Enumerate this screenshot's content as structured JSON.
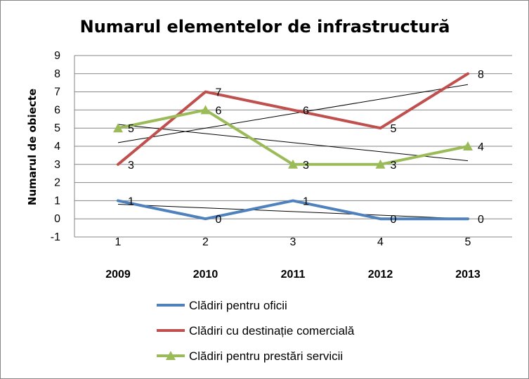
{
  "chart_data": {
    "type": "line",
    "title": "Numarul elementelor de infrastructură",
    "ylabel": "Numarul de obiecte",
    "x": [
      1,
      2,
      3,
      4,
      5
    ],
    "year_labels": [
      "2009",
      "2010",
      "2011",
      "2012",
      "2013"
    ],
    "ylim": [
      -1,
      9
    ],
    "yticks": [
      "-1",
      "0",
      "1",
      "2",
      "3",
      "4",
      "5",
      "6",
      "7",
      "8",
      "9"
    ],
    "grid": "horizontal",
    "legend_position": "bottom",
    "series": [
      {
        "name": "Clădiri pentru oficii",
        "values": [
          1,
          0,
          1,
          0,
          0
        ],
        "color": "#4F81BD",
        "marker": "none",
        "trendline": true
      },
      {
        "name": "Clădiri cu destinație comercială",
        "values": [
          3,
          7,
          6,
          5,
          8
        ],
        "color": "#C0504D",
        "marker": "none",
        "trendline": true
      },
      {
        "name": "Clădiri pentru prestări servicii",
        "values": [
          5,
          6,
          3,
          3,
          4
        ],
        "color": "#9BBB59",
        "marker": "triangle",
        "trendline": true
      }
    ]
  }
}
